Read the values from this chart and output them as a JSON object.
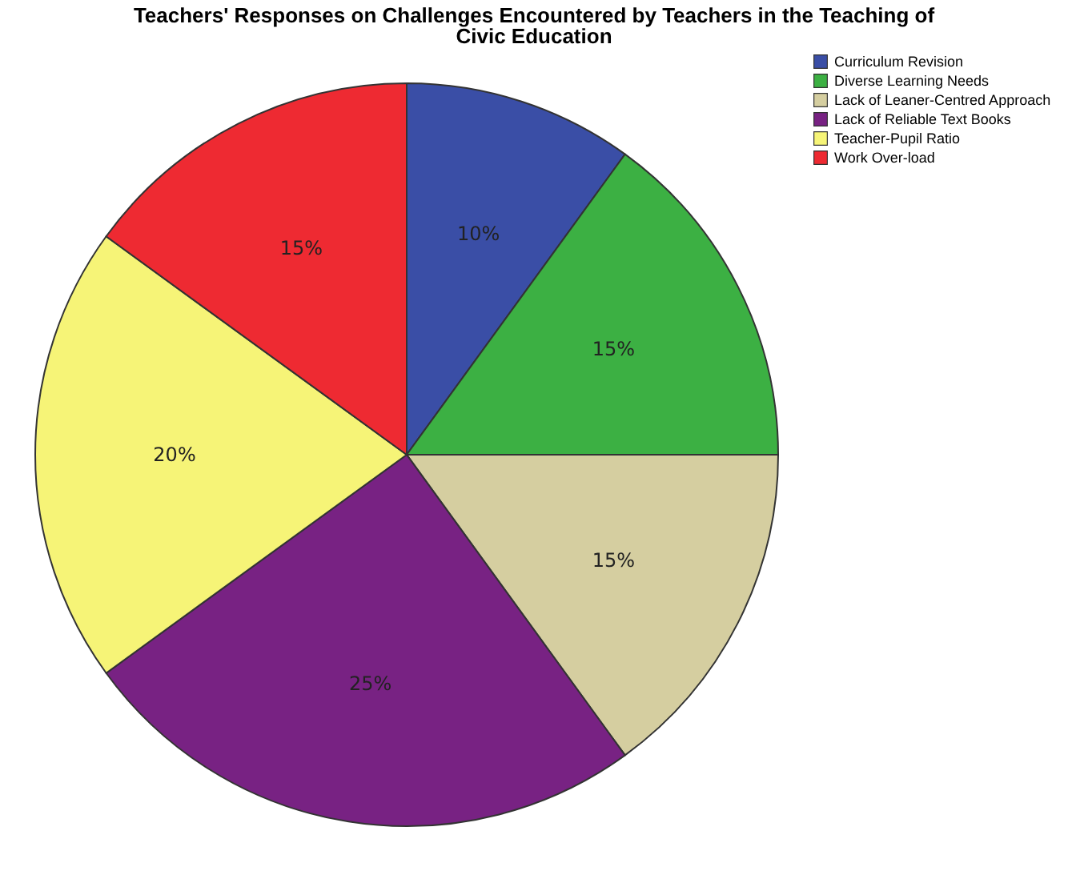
{
  "chart_data": {
    "type": "pie",
    "title": "Teachers' Responses on Challenges Encountered by Teachers in the Teaching of Civic Education",
    "categories": [
      "Curriculum Revision",
      "Diverse Learning Needs",
      "Lack of Leaner-Centred Approach",
      "Lack of Reliable Text Books",
      "Teacher-Pupil Ratio",
      "Work Over-load"
    ],
    "values": [
      10,
      15,
      15,
      25,
      20,
      15
    ],
    "value_labels": [
      "10%",
      "15%",
      "15%",
      "25%",
      "20%",
      "15%"
    ],
    "colors": [
      "#3a4ea6",
      "#3cb043",
      "#d5cea0",
      "#782283",
      "#f6f477",
      "#ee2a32"
    ],
    "legend": "top right"
  }
}
